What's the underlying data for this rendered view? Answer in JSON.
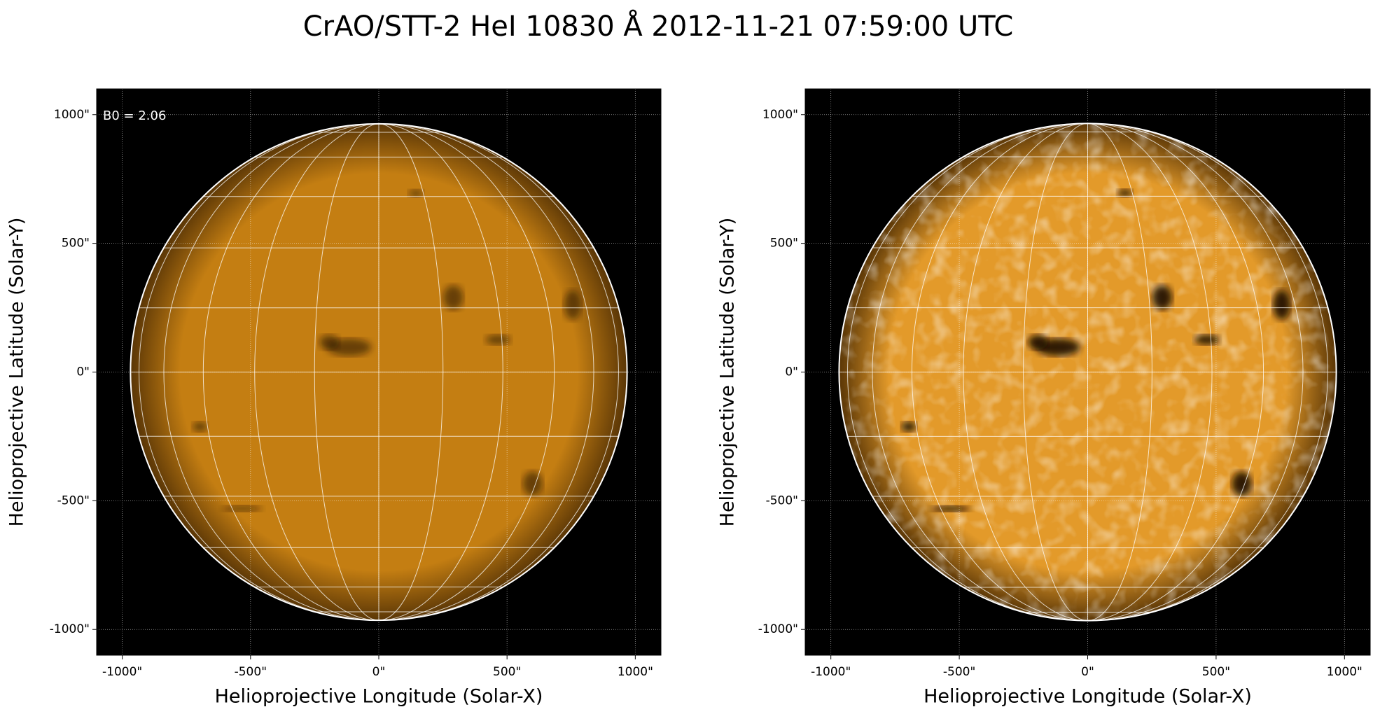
{
  "title": "CrAO/STT-2 HeI 10830 Å 2012-11-21 07:59:00 UTC",
  "chart_data": [
    {
      "type": "image",
      "xlabel": "Helioprojective Longitude (Solar-X)",
      "ylabel": "Helioprojective Latitude (Solar-Y)",
      "annotation": "B0 = 2.06",
      "color": "#c47e12",
      "grid": true,
      "xlim": [
        -1100,
        1100
      ],
      "ylim": [
        -1100,
        1100
      ],
      "xticks": [
        {
          "value": -1000,
          "label": "-1000\""
        },
        {
          "value": -500,
          "label": "-500\""
        },
        {
          "value": 0,
          "label": "0\""
        },
        {
          "value": 500,
          "label": "500\""
        },
        {
          "value": 1000,
          "label": "1000\""
        }
      ],
      "yticks": [
        {
          "value": -1000,
          "label": "-1000\""
        },
        {
          "value": -500,
          "label": "-500\""
        },
        {
          "value": 0,
          "label": "0\""
        },
        {
          "value": 500,
          "label": "500\""
        },
        {
          "value": 1000,
          "label": "1000\""
        }
      ]
    },
    {
      "type": "image",
      "xlabel": "Helioprojective Longitude (Solar-X)",
      "ylabel": "Helioprojective Latitude (Solar-Y)",
      "color": "#e39a2a",
      "grid": true,
      "xlim": [
        -1100,
        1100
      ],
      "ylim": [
        -1100,
        1100
      ],
      "xticks": [
        {
          "value": -1000,
          "label": "-1000\""
        },
        {
          "value": -500,
          "label": "-500\""
        },
        {
          "value": 0,
          "label": "0\""
        },
        {
          "value": 500,
          "label": "500\""
        },
        {
          "value": 1000,
          "label": "1000\""
        }
      ],
      "yticks": [
        {
          "value": -1000,
          "label": "-1000\""
        },
        {
          "value": -500,
          "label": "-500\""
        },
        {
          "value": 0,
          "label": "0\""
        },
        {
          "value": 500,
          "label": "500\""
        },
        {
          "value": 1000,
          "label": "1000\""
        }
      ]
    }
  ]
}
